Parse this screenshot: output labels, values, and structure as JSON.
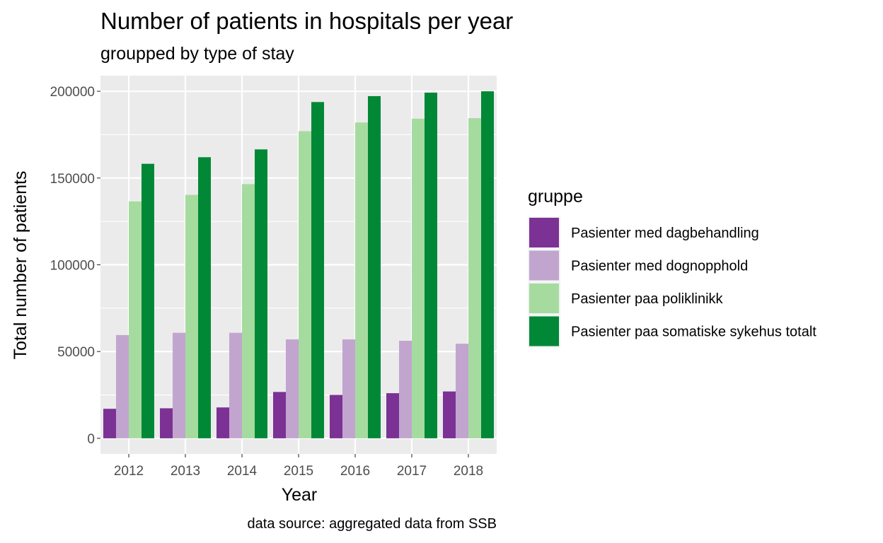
{
  "chart_data": {
    "type": "bar",
    "title": "Number of patients in hospitals per year",
    "subtitle": "groupped by type of stay",
    "xlabel": "Year",
    "ylabel": "Total number of patients",
    "caption": "data source: aggregated data from SSB",
    "categories": [
      "2012",
      "2013",
      "2014",
      "2015",
      "2016",
      "2017",
      "2018"
    ],
    "ylim": [
      -9000,
      209000
    ],
    "yticks": [
      0,
      50000,
      100000,
      150000,
      200000
    ],
    "ytick_labels": [
      "0",
      "50000",
      "100000",
      "150000",
      "200000"
    ],
    "grid": true,
    "legend": {
      "title": "gruppe",
      "position": "right"
    },
    "series": [
      {
        "name": "Pasienter med dagbehandling",
        "color": "#7b3294",
        "values": [
          17000,
          17300,
          17800,
          26700,
          25000,
          26000,
          27000
        ]
      },
      {
        "name": "Pasienter med dognopphold",
        "color": "#c2a5cf",
        "values": [
          59500,
          60800,
          60800,
          57000,
          57000,
          56200,
          54500
        ]
      },
      {
        "name": "Pasienter paa poliklinikk",
        "color": "#a6dba0",
        "values": [
          136500,
          140300,
          146500,
          177000,
          182000,
          184200,
          184500
        ]
      },
      {
        "name": "Pasienter paa somatiske sykehus totalt",
        "color": "#008837",
        "values": [
          158200,
          162000,
          166500,
          193800,
          197200,
          199200,
          200000
        ]
      }
    ]
  }
}
